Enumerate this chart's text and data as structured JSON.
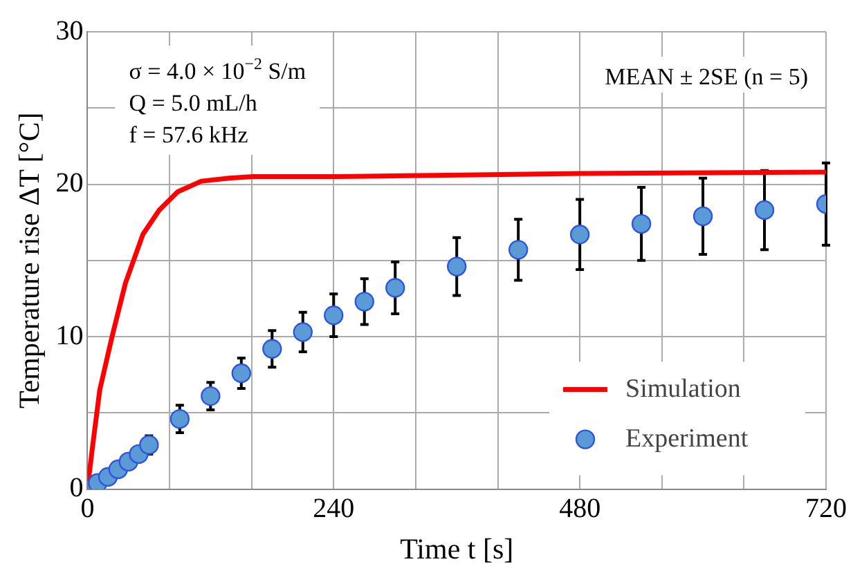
{
  "chart_data": {
    "type": "scatter",
    "xlabel": "Time t [s]",
    "ylabel": "Temperature rise ΔT [°C]",
    "annotations": [
      "σ = 4.0 × 10$^{−2}$ S/m",
      "Q = 5.0 mL/h",
      "f = 57.6 kHz",
      "MEAN ± 2SE (n = 5)"
    ],
    "xlim": [
      0,
      720
    ],
    "xticks": [
      0,
      {
        "value": 80,
        "label": null
      },
      {
        "value": 160,
        "label": null
      },
      240,
      {
        "value": 320,
        "label": null
      },
      {
        "value": 400,
        "label": null
      },
      480,
      {
        "value": 560,
        "label": null
      },
      {
        "value": 640,
        "label": null
      },
      720
    ],
    "ylim": [
      0,
      30
    ],
    "yticks": [
      0,
      {
        "value": 5,
        "label": null
      },
      10,
      {
        "value": 15,
        "label": null
      },
      20,
      {
        "value": 25,
        "label": null
      },
      30
    ],
    "grid": true,
    "legend": "bottom right",
    "line_style": "solid",
    "series": [
      {
        "name": "Simulation",
        "type": "line",
        "color": "#ff0000",
        "x": [
          0,
          5,
          12,
          24,
          37,
          54,
          70,
          88,
          111,
          138,
          161,
          240,
          480,
          720
        ],
        "values": [
          0,
          2.8,
          6.5,
          10,
          13.5,
          16.7,
          18.3,
          19.5,
          20.2,
          20.4,
          20.5,
          20.5,
          20.7,
          20.8
        ]
      },
      {
        "name": "Experiment",
        "marker": "circle",
        "color": "#5b9bd5",
        "x": [
          0,
          10,
          20,
          30,
          40,
          50,
          60,
          90,
          120,
          150,
          180,
          210,
          240,
          270,
          300,
          360,
          420,
          480,
          540,
          600,
          660,
          720
        ],
        "values": [
          0,
          0.4,
          0.8,
          1.3,
          1.8,
          2.3,
          2.9,
          4.6,
          6.1,
          7.6,
          9.2,
          10.3,
          11.4,
          12.3,
          13.2,
          14.6,
          15.7,
          16.7,
          17.4,
          17.9,
          18.3,
          18.7
        ],
        "errors": [
          null,
          null,
          null,
          null,
          null,
          null,
          0.6,
          0.9,
          0.9,
          1.0,
          1.2,
          1.3,
          1.4,
          1.5,
          1.7,
          1.9,
          2.0,
          2.3,
          2.4,
          2.5,
          2.6,
          2.7
        ]
      }
    ]
  }
}
